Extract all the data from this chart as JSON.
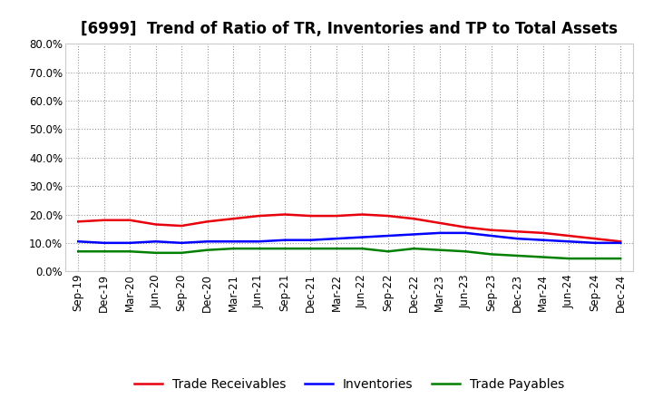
{
  "title": "[6999]  Trend of Ratio of TR, Inventories and TP to Total Assets",
  "x_labels": [
    "Sep-19",
    "Dec-19",
    "Mar-20",
    "Jun-20",
    "Sep-20",
    "Dec-20",
    "Mar-21",
    "Jun-21",
    "Sep-21",
    "Dec-21",
    "Mar-22",
    "Jun-22",
    "Sep-22",
    "Dec-22",
    "Mar-23",
    "Jun-23",
    "Sep-23",
    "Dec-23",
    "Mar-24",
    "Jun-24",
    "Sep-24",
    "Dec-24"
  ],
  "trade_receivables": [
    17.5,
    18.0,
    18.0,
    16.5,
    16.0,
    17.5,
    18.5,
    19.5,
    20.0,
    19.5,
    19.5,
    20.0,
    19.5,
    18.5,
    17.0,
    15.5,
    14.5,
    14.0,
    13.5,
    12.5,
    11.5,
    10.5
  ],
  "inventories": [
    10.5,
    10.0,
    10.0,
    10.5,
    10.0,
    10.5,
    10.5,
    10.5,
    11.0,
    11.0,
    11.5,
    12.0,
    12.5,
    13.0,
    13.5,
    13.5,
    12.5,
    11.5,
    11.0,
    10.5,
    10.0,
    10.0
  ],
  "trade_payables": [
    7.0,
    7.0,
    7.0,
    6.5,
    6.5,
    7.5,
    8.0,
    8.0,
    8.0,
    8.0,
    8.0,
    8.0,
    7.0,
    8.0,
    7.5,
    7.0,
    6.0,
    5.5,
    5.0,
    4.5,
    4.5,
    4.5
  ],
  "ylim": [
    0,
    80
  ],
  "yticks": [
    0,
    10,
    20,
    30,
    40,
    50,
    60,
    70,
    80
  ],
  "tr_color": "#e8000d",
  "inv_color": "#0000ff",
  "tp_color": "#008000",
  "tr_label": "Trade Receivables",
  "inv_label": "Inventories",
  "tp_label": "Trade Payables",
  "bg_color": "#ffffff",
  "grid_color": "#999999",
  "title_fontsize": 12,
  "axis_fontsize": 8.5,
  "legend_fontsize": 10
}
